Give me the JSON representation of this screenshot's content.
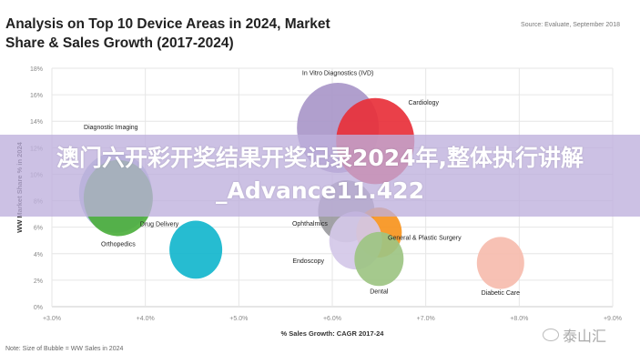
{
  "title": "Analysis on Top 10 Device Areas in 2024, Market Share & Sales Growth (2017-2024)",
  "source": "Source: Evaluate, September 2018",
  "note": "Note: Size of Bubble = WW Sales in 2024",
  "overlay_text": "澳门六开彩开奖结果开奖记录2024年,整体执行讲解_Advance11.422",
  "watermark": "泰山汇",
  "chart_data": {
    "type": "scatter",
    "subtype": "bubble",
    "title": "Analysis on Top 10 Device Areas in 2024, Market Share & Sales Growth (2017-2024)",
    "xlabel": "% Sales Growth: CAGR 2017-24",
    "ylabel": "WW Market Share % in 2024",
    "xlim": [
      3,
      9
    ],
    "ylim": [
      0,
      18
    ],
    "xticks": [
      "+3.0%",
      "+4.0%",
      "+5.0%",
      "+6.0%",
      "+7.0%",
      "+8.0%",
      "+9.0%"
    ],
    "yticks": [
      "0%",
      "2%",
      "4%",
      "6%",
      "8%",
      "10%",
      "12%",
      "14%",
      "16%",
      "18%"
    ],
    "grid": true,
    "points": [
      {
        "name": "In Vitro Diagnostics (IVD)",
        "x": 6.06,
        "y": 13.5,
        "size": 45,
        "color": "#a997c9"
      },
      {
        "name": "Cardiology",
        "x": 6.46,
        "y": 12.5,
        "size": 43,
        "color": "#e8303a"
      },
      {
        "name": "Diagnostic Imaging",
        "x": 3.68,
        "y": 8.6,
        "size": 40,
        "color": "#a9b9d9"
      },
      {
        "name": "Orthopedics",
        "x": 3.71,
        "y": 8.2,
        "size": 38,
        "color": "#4caf3d"
      },
      {
        "name": "Drug Delivery",
        "x": 4.54,
        "y": 4.3,
        "size": 29,
        "color": "#13b6cd"
      },
      {
        "name": "Ophthalmics",
        "x": 6.15,
        "y": 7.2,
        "size": 31,
        "color": "#9a9a9e"
      },
      {
        "name": "General & Plastic Surgery",
        "x": 6.5,
        "y": 5.6,
        "size": 25,
        "color": "#f7941d"
      },
      {
        "name": "Endoscopy",
        "x": 6.25,
        "y": 5.0,
        "size": 29,
        "color": "#d4c8e8"
      },
      {
        "name": "Dental",
        "x": 6.5,
        "y": 3.6,
        "size": 27,
        "color": "#9dc483"
      },
      {
        "name": "Diabetic Care",
        "x": 7.8,
        "y": 3.3,
        "size": 26,
        "color": "#f6bcae"
      }
    ]
  }
}
